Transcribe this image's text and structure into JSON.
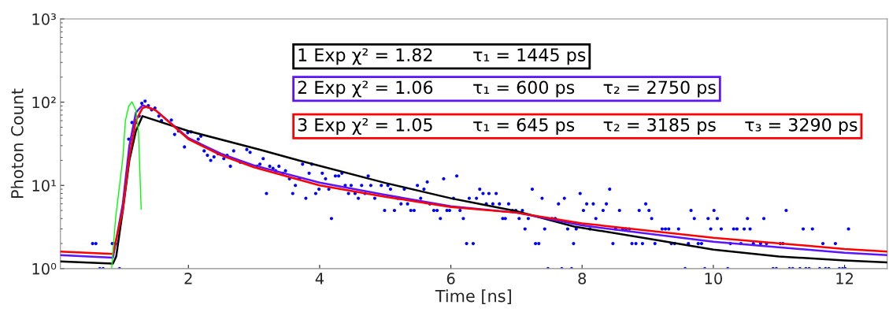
{
  "chart_data": {
    "type": "line",
    "xlabel": "Time [ns]",
    "ylabel": "Photon Count",
    "log": "y",
    "grid": false,
    "legend": false,
    "xlim": [
      0.05,
      12.65
    ],
    "xticks": [
      2,
      4,
      6,
      8,
      10,
      12
    ],
    "ylim": [
      1,
      1000
    ],
    "yticks": [
      {
        "value": 1,
        "label": "10⁰"
      },
      {
        "value": 10,
        "label": "10¹"
      },
      {
        "value": 100,
        "label": "10²"
      },
      {
        "value": 1000,
        "label": "10³"
      }
    ],
    "annotations": [
      "1 Exp χ² = 1.82       τ₁ = 1445 ps",
      "2 Exp χ² = 1.06       τ₁ = 600 ps     τ₂ = 2750 ps",
      "3 Exp χ² = 1.05       τ₁ = 645 ps     τ₂ = 3185 ps     τ₃ = 3290 ps"
    ],
    "series": [
      {
        "type": "scatter",
        "color": "#0000ff",
        "marker": "circle",
        "x": [
          0.54,
          0.59,
          0.65,
          0.7,
          0.84,
          0.89,
          0.95,
          1.09,
          1.14,
          1.2,
          1.25,
          1.29,
          1.34,
          1.39,
          1.44,
          1.49,
          1.55,
          1.59,
          1.74,
          1.79,
          1.85,
          1.94,
          1.99,
          2.04,
          2.15,
          2.19,
          2.24,
          2.29,
          2.34,
          2.39,
          2.45,
          2.54,
          2.59,
          2.64,
          2.69,
          2.79,
          2.89,
          2.94,
          3.05,
          3.09,
          3.14,
          3.19,
          3.24,
          3.29,
          3.33,
          3.38,
          3.44,
          3.48,
          3.54,
          3.59,
          3.63,
          3.69,
          3.74,
          3.79,
          3.84,
          3.88,
          3.94,
          3.99,
          4.04,
          4.09,
          4.14,
          4.18,
          4.24,
          4.29,
          4.34,
          4.39,
          4.44,
          4.48,
          4.54,
          4.59,
          4.64,
          4.69,
          4.74,
          4.78,
          4.84,
          4.94,
          4.99,
          5.04,
          5.08,
          5.14,
          5.19,
          5.24,
          5.29,
          5.34,
          5.39,
          5.44,
          5.49,
          5.54,
          5.59,
          5.64,
          5.68,
          5.74,
          5.79,
          5.84,
          5.89,
          5.94,
          5.98,
          6.04,
          6.09,
          6.14,
          6.19,
          6.24,
          6.28,
          6.34,
          6.39,
          6.44,
          6.49,
          6.54,
          6.58,
          6.64,
          6.69,
          6.74,
          6.79,
          6.83,
          6.88,
          6.94,
          6.99,
          7.04,
          7.09,
          7.13,
          7.18,
          7.24,
          7.29,
          7.34,
          7.39,
          7.43,
          7.48,
          7.54,
          7.59,
          7.64,
          7.69,
          7.73,
          7.78,
          7.84,
          7.87,
          7.91,
          7.97,
          8.02,
          8.07,
          8.12,
          8.17,
          8.21,
          8.32,
          8.37,
          8.42,
          8.47,
          8.51,
          8.57,
          8.62,
          8.67,
          8.72,
          8.76,
          8.82,
          8.87,
          8.92,
          8.97,
          9.02,
          9.06,
          9.11,
          9.22,
          9.27,
          9.32,
          9.36,
          9.41,
          9.47,
          9.57,
          9.62,
          9.66,
          9.71,
          9.77,
          9.82,
          9.87,
          9.92,
          9.96,
          10.01,
          10.06,
          10.12,
          10.22,
          10.26,
          10.31,
          10.36,
          10.42,
          10.47,
          10.52,
          10.56,
          10.61,
          10.72,
          10.77,
          10.81,
          10.91,
          10.96,
          11.02,
          11.06,
          11.11,
          11.16,
          11.21,
          11.32,
          11.37,
          11.41,
          11.46,
          11.51,
          11.62,
          11.67,
          11.71,
          11.76,
          11.86,
          11.92,
          11.97,
          12.01,
          12.06
        ],
        "values": [
          2,
          2,
          1,
          1,
          2,
          2,
          1,
          36,
          57,
          57,
          68,
          97,
          103,
          91,
          81,
          85,
          68,
          60,
          61,
          41,
          45,
          29,
          43,
          44,
          36,
          39,
          26,
          23,
          20,
          22,
          24,
          21,
          23,
          17,
          26,
          19,
          27,
          25,
          17,
          18,
          21,
          8,
          17,
          16,
          15,
          17,
          14,
          15,
          12,
          8,
          10,
          12,
          18,
          7,
          14,
          18,
          8,
          9,
          14,
          12,
          9,
          4,
          13,
          13,
          14,
          10,
          8,
          10,
          8,
          7,
          10,
          8,
          13,
          10,
          7,
          10,
          5,
          10,
          9,
          5,
          7,
          6,
          9,
          6,
          5,
          5,
          10,
          7,
          9,
          11,
          6,
          5,
          5,
          4,
          12,
          5,
          5,
          7,
          13,
          5,
          4,
          2,
          7,
          2,
          7,
          9,
          8,
          6,
          8,
          6,
          8,
          6,
          4,
          4,
          6,
          5,
          5,
          4,
          5,
          3,
          4,
          9,
          2,
          2,
          7,
          3,
          1,
          4,
          4,
          6,
          1,
          7,
          3,
          1,
          2,
          3,
          8,
          5,
          6,
          3,
          6,
          4,
          5,
          6,
          9,
          2,
          3,
          5,
          3,
          3,
          3,
          2,
          2,
          5,
          2,
          6,
          5,
          4,
          2,
          3,
          3,
          3,
          2,
          2,
          3,
          1,
          2,
          5,
          4,
          2,
          2,
          1,
          4,
          3,
          5,
          4,
          3,
          1,
          2,
          3,
          3,
          2,
          3,
          4,
          3,
          2,
          2,
          4,
          2,
          1,
          1,
          2,
          2,
          5,
          1,
          1,
          1,
          3,
          1,
          1,
          3,
          1,
          2,
          1,
          1,
          2,
          1,
          1,
          1,
          3
        ]
      },
      {
        "color": "#000000",
        "x": [
          0.05,
          0.85,
          0.9,
          1.0,
          1.1,
          1.2,
          1.3,
          2,
          3.08,
          3.68,
          5,
          6,
          7,
          7.88,
          9,
          10,
          11,
          12,
          12.65
        ],
        "values": [
          1.22,
          1.15,
          1.4,
          5,
          20,
          45,
          68,
          45,
          27,
          20,
          10.7,
          7,
          4.9,
          3.2,
          2.3,
          1.69,
          1.4,
          1.25,
          1.19
        ]
      },
      {
        "color": "#5a14ff",
        "x": [
          0.05,
          0.85,
          1.0,
          1.1,
          1.2,
          1.3,
          1.5,
          2,
          2.5,
          3,
          4,
          5,
          6,
          7,
          8,
          10,
          12,
          12.65
        ],
        "values": [
          1.45,
          1.35,
          6,
          30,
          75,
          92,
          80,
          37,
          24,
          17.4,
          10.8,
          7.7,
          5.6,
          4.7,
          3.3,
          2.1,
          1.55,
          1.45
        ]
      },
      {
        "color": "#ff0000",
        "x": [
          0.05,
          0.85,
          1.0,
          1.1,
          1.2,
          1.3,
          1.36,
          1.5,
          2,
          2.5,
          3,
          4,
          5,
          6,
          7,
          8,
          10,
          12,
          12.65
        ],
        "values": [
          1.6,
          1.5,
          5,
          22,
          60,
          85,
          88,
          80,
          36,
          23,
          16.5,
          10,
          7.3,
          5.5,
          4.7,
          3.5,
          2.35,
          1.72,
          1.6
        ]
      },
      {
        "color": "#00ff00",
        "x": [
          0.83,
          0.89,
          1.0,
          1.04,
          1.09,
          1.14,
          1.2,
          1.24,
          1.26,
          1.28
        ],
        "values": [
          1,
          4,
          21,
          60,
          89,
          101,
          80,
          44,
          15,
          5.2
        ]
      }
    ]
  }
}
